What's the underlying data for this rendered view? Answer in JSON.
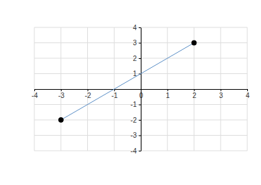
{
  "chart_data": {
    "type": "line",
    "x": [
      -3,
      2
    ],
    "series": [
      {
        "values": [
          -2,
          3
        ],
        "color": "#5b8fc7",
        "marker": "circle"
      }
    ],
    "xlim": [
      -4,
      4
    ],
    "xticks": [
      -4,
      -3,
      -2,
      -1,
      0,
      1,
      2,
      3,
      4
    ],
    "ylim": [
      -4,
      4
    ],
    "yticks": [
      -4,
      -3,
      -2,
      -1,
      1,
      2,
      3,
      4
    ],
    "grid": true
  }
}
